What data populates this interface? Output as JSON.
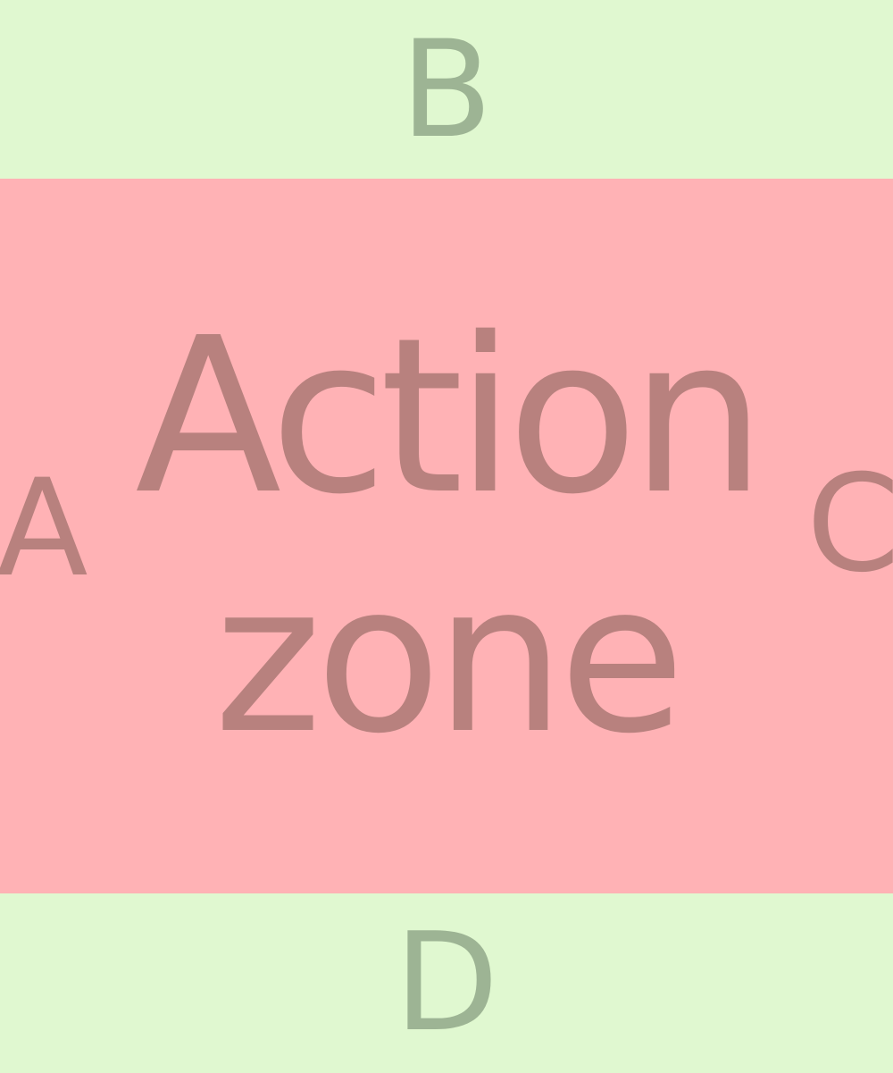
{
  "zones": {
    "top_label": "B",
    "action_line1": "Action",
    "action_line2": "zone",
    "left_label": "A",
    "right_label": "C",
    "bottom_label": "D"
  },
  "colors": {
    "safe_background": "#e0f8d0",
    "safe_text": "#9db494",
    "action_background": "#ffb2b5",
    "action_text": "#b8817e"
  }
}
